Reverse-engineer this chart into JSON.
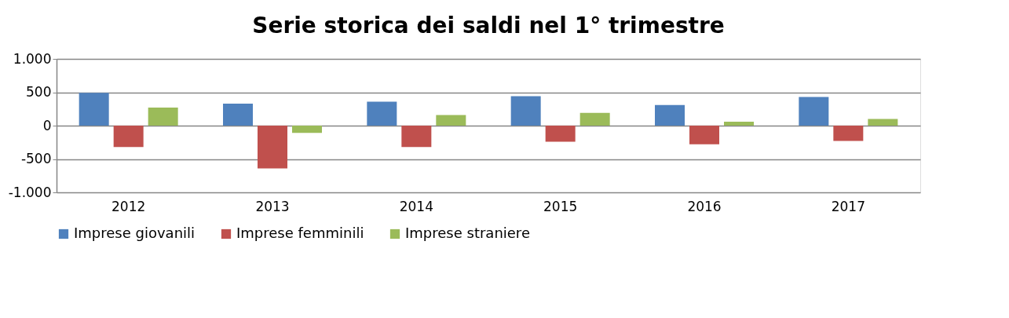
{
  "chart_data": {
    "type": "bar",
    "title": "Serie storica dei saldi nel 1° trimestre",
    "categories": [
      "2012",
      "2013",
      "2014",
      "2015",
      "2016",
      "2017"
    ],
    "series": [
      {
        "name": "Imprese giovanili",
        "color": "#4f81bd",
        "values": [
          490,
          330,
          360,
          440,
          310,
          430
        ]
      },
      {
        "name": "Imprese femminili",
        "color": "#c0504d",
        "values": [
          -320,
          -640,
          -320,
          -240,
          -280,
          -230
        ]
      },
      {
        "name": "Imprese straniere",
        "color": "#9bbb59",
        "values": [
          270,
          -110,
          160,
          190,
          60,
          100
        ]
      }
    ],
    "ylim": [
      -1000,
      1000
    ],
    "yticks": [
      {
        "value": -1000,
        "label": "-1.000"
      },
      {
        "value": -500,
        "label": "-500"
      },
      {
        "value": 0,
        "label": "0"
      },
      {
        "value": 500,
        "label": "500"
      },
      {
        "value": 1000,
        "label": "1.000"
      }
    ],
    "grid": "y",
    "legend": "bottom"
  }
}
